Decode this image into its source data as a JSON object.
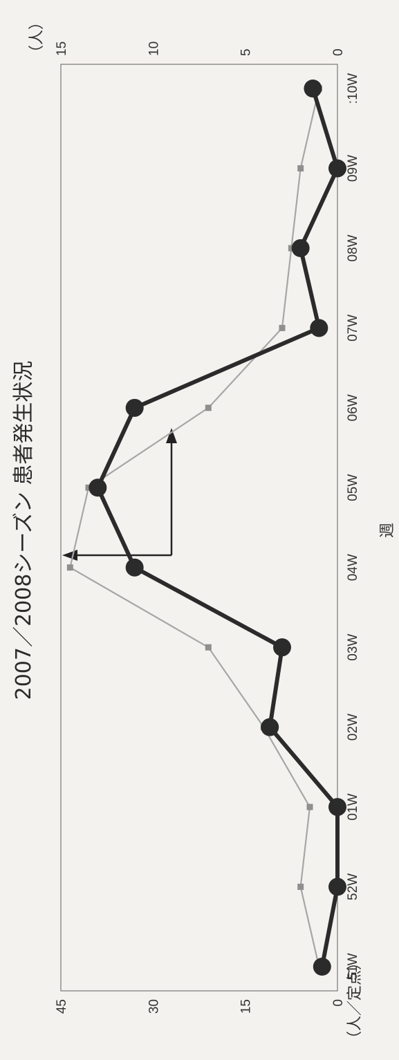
{
  "chart_data": {
    "type": "line",
    "title": "2007／2008シーズン 患者発生状況",
    "xlabel": "週",
    "ylabel_left": "（人／定点）",
    "ylabel_right": "（人）",
    "categories": [
      "51W",
      "52W",
      "01W",
      "02W",
      "03W",
      "04W",
      "05W",
      "06W",
      "07W",
      "08W",
      "09W",
      ":10W"
    ],
    "ylim_left": [
      0,
      45
    ],
    "yticks_left": [
      "0",
      "15",
      "30",
      "45"
    ],
    "ylim_right": [
      0,
      15
    ],
    "yticks_right": [
      "0",
      "5",
      "10",
      "15"
    ],
    "series": [
      {
        "axis": "left",
        "style": "thick-black-circles",
        "values": [
          2.5,
          0,
          0,
          11,
          9,
          33,
          39,
          33,
          3,
          6,
          0,
          4
        ]
      },
      {
        "axis": "right",
        "style": "thin-grey-squares",
        "values": [
          1,
          2,
          1.5,
          4,
          7,
          14.5,
          13.5,
          7,
          3,
          2.5,
          2,
          1
        ]
      }
    ],
    "grid": false,
    "legend": "none",
    "colors": {
      "series1": "#2b2b2b",
      "series2": "#a6a6a6",
      "axis": "#555555"
    }
  }
}
